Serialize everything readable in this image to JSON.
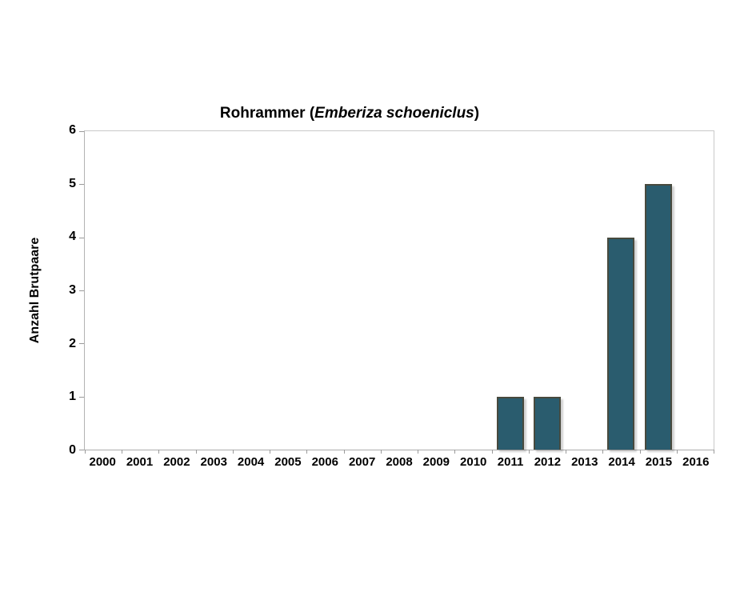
{
  "title": {
    "prefix": "Rohrammer (",
    "species": "Emberiza schoeniclus",
    "suffix": ")"
  },
  "chart_data": {
    "type": "bar",
    "title": "Rohrammer (Emberiza schoeniclus)",
    "categories": [
      "2000",
      "2001",
      "2002",
      "2003",
      "2004",
      "2005",
      "2006",
      "2007",
      "2008",
      "2009",
      "2010",
      "2011",
      "2012",
      "2013",
      "2014",
      "2015",
      "2016"
    ],
    "values": [
      0,
      0,
      0,
      0,
      0,
      0,
      0,
      0,
      0,
      0,
      0,
      1,
      1,
      0,
      4,
      5,
      0
    ],
    "xlabel": "",
    "ylabel": "Anzahl Brutpaare",
    "ylim": [
      0,
      6
    ],
    "yticks": [
      0,
      1,
      2,
      3,
      4,
      5,
      6
    ],
    "grid": false,
    "legend": false,
    "colors": {
      "bar_fill": "#2A5C6E",
      "bar_border": "#484A3E",
      "axis": "#B3B3B3",
      "tick": "#9B9B9B",
      "text": "#000000",
      "background": "#FFFFFF"
    }
  }
}
